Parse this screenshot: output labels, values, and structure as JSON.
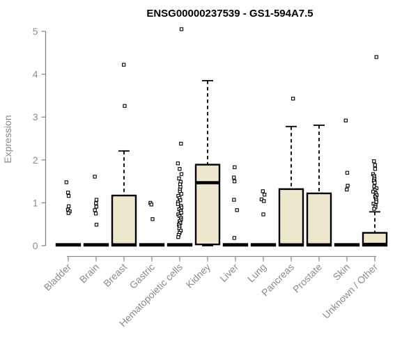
{
  "chart_data": {
    "type": "boxplot",
    "title": "ENSG00000237539 - GS1-594A7.5",
    "xlabel": "",
    "ylabel": "Expression",
    "ylim": [
      0,
      5
    ],
    "yticks": [
      0,
      1,
      2,
      3,
      4,
      5
    ],
    "grid": false,
    "legend": false,
    "colors": {
      "box_fill": "#ece7cd",
      "box_stroke": "#000000",
      "median": "#000000",
      "whisker": "#000000",
      "axis": "#888888",
      "tick_text": "#8b8b8b",
      "title_text": "#000000",
      "background": "#ffffff"
    },
    "categories": [
      "Bladder",
      "Brain",
      "Breast",
      "Gastric",
      "Hematopoietic cells",
      "Kidney",
      "Liver",
      "Lung",
      "Pancreas",
      "Prostate",
      "Skin",
      "Unknown / Other"
    ],
    "series": [
      {
        "category": "Bladder",
        "q1": 0,
        "median": 0.02,
        "q3": 0.04,
        "whisker_low": 0,
        "whisker_high": 0.04,
        "outliers": [
          1.48,
          1.24,
          1.16,
          0.92,
          0.84,
          0.8,
          0.76
        ]
      },
      {
        "category": "Brain",
        "q1": 0,
        "median": 0.02,
        "q3": 0.04,
        "whisker_low": 0,
        "whisker_high": 0.04,
        "outliers": [
          1.61,
          1.07,
          0.99,
          0.91,
          0.83,
          0.75,
          0.49
        ]
      },
      {
        "category": "Breast",
        "q1": 0,
        "median": 0.02,
        "q3": 1.17,
        "whisker_low": 0,
        "whisker_high": 2.21,
        "outliers": [
          4.22,
          3.26
        ]
      },
      {
        "category": "Gastric",
        "q1": 0,
        "median": 0.02,
        "q3": 0.04,
        "whisker_low": 0,
        "whisker_high": 0.04,
        "outliers": [
          1.0,
          0.96,
          0.62
        ]
      },
      {
        "category": "Hematopoietic cells",
        "q1": 0,
        "median": 0.02,
        "q3": 0.04,
        "whisker_low": 0,
        "whisker_high": 0.04,
        "outliers": [
          5.05,
          2.38,
          1.92,
          1.79,
          1.67,
          1.57,
          1.49,
          1.43,
          1.37,
          1.31,
          1.26,
          1.21,
          1.16,
          1.11,
          1.06,
          1.01,
          0.97,
          0.93,
          0.89,
          0.85,
          0.81,
          0.77,
          0.73,
          0.69,
          0.65,
          0.61,
          0.57,
          0.53,
          0.49,
          0.45,
          0.4,
          0.35,
          0.3,
          0.25,
          0.2
        ]
      },
      {
        "category": "Kidney",
        "q1": 0.03,
        "median": 1.47,
        "q3": 1.89,
        "whisker_low": 0,
        "whisker_high": 3.85,
        "outliers": []
      },
      {
        "category": "Liver",
        "q1": 0,
        "median": 0.02,
        "q3": 0.04,
        "whisker_low": 0,
        "whisker_high": 0.04,
        "outliers": [
          1.83,
          1.59,
          1.5,
          1.07,
          0.83,
          0.18
        ]
      },
      {
        "category": "Lung",
        "q1": 0,
        "median": 0.02,
        "q3": 0.04,
        "whisker_low": 0,
        "whisker_high": 0.04,
        "outliers": [
          1.27,
          1.19,
          1.08,
          1.04,
          0.73
        ]
      },
      {
        "category": "Pancreas",
        "q1": 0,
        "median": 0.02,
        "q3": 1.32,
        "whisker_low": 0,
        "whisker_high": 2.78,
        "outliers": [
          3.43
        ]
      },
      {
        "category": "Prostate",
        "q1": 0,
        "median": 0.02,
        "q3": 1.22,
        "whisker_low": 0,
        "whisker_high": 2.81,
        "outliers": []
      },
      {
        "category": "Skin",
        "q1": 0,
        "median": 0.02,
        "q3": 0.04,
        "whisker_low": 0,
        "whisker_high": 0.04,
        "outliers": [
          2.92,
          1.7,
          1.4,
          1.31
        ]
      },
      {
        "category": "Unknown / Other",
        "q1": 0,
        "median": 0.03,
        "q3": 0.3,
        "whisker_low": 0,
        "whisker_high": 0.79,
        "outliers": [
          4.4,
          1.97,
          1.88,
          1.79,
          1.67,
          1.63,
          1.59,
          1.55,
          1.51,
          1.47,
          1.38,
          1.34,
          1.3,
          1.26,
          1.22,
          1.18,
          1.14,
          1.1,
          1.06,
          1.02,
          0.98,
          0.94,
          0.9,
          0.86
        ]
      }
    ]
  }
}
